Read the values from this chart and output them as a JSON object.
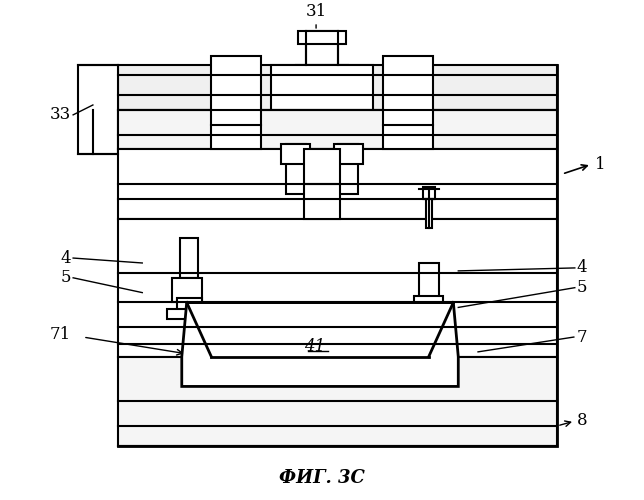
{
  "title": "ФИГ. 3С",
  "label_1": "1",
  "label_31": "31",
  "label_33": "33",
  "label_4": "4",
  "label_5": "5",
  "label_7": "7",
  "label_71": "71",
  "label_8": "8",
  "label_41": "41",
  "bg_color": "#ffffff",
  "line_color": "#000000",
  "line_width": 1.5,
  "fig_width": 6.44,
  "fig_height": 5.0,
  "dpi": 100
}
